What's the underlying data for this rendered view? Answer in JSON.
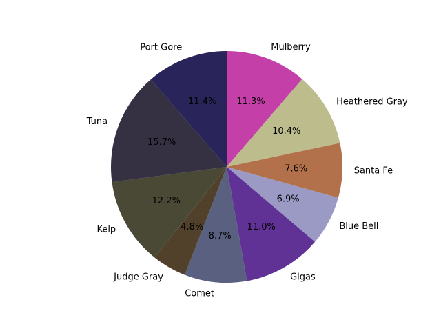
{
  "chart_data": {
    "type": "pie",
    "title": "",
    "categories": [
      "Mulberry",
      "Heathered Gray",
      "Santa Fe",
      "Blue Bell",
      "Gigas",
      "Comet",
      "Judge Gray",
      "Kelp",
      "Tuna",
      "Port Gore"
    ],
    "values": [
      11.3,
      10.4,
      7.6,
      6.9,
      11.0,
      8.7,
      4.8,
      12.2,
      15.7,
      11.4
    ],
    "labels": [
      "11.3%",
      "10.4%",
      "7.6%",
      "6.9%",
      "11.0%",
      "8.7%",
      "4.8%",
      "12.2%",
      "15.7%",
      "11.4%"
    ],
    "colors": [
      "#c53fa9",
      "#bcbc8d",
      "#b2714a",
      "#9a9ac5",
      "#613296",
      "#5a607f",
      "#51412b",
      "#494936",
      "#353143",
      "#29255a"
    ],
    "start_angle_deg": 90,
    "direction": "clockwise"
  }
}
